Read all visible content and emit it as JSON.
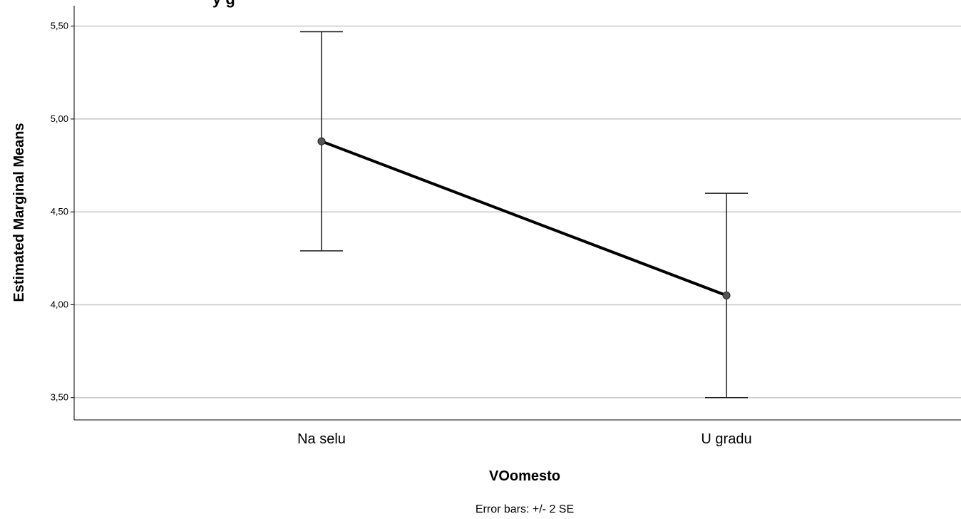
{
  "chart_data": {
    "type": "line",
    "title_partial": "y  g",
    "xlabel": "VOomesto",
    "ylabel": "Estimated Marginal Means",
    "categories": [
      "Na selu",
      "U gradu"
    ],
    "series": [
      {
        "values": [
          4.88,
          4.05
        ],
        "error_low": [
          4.29,
          3.5
        ],
        "error_high": [
          5.47,
          4.6
        ]
      }
    ],
    "ylim": [
      3.38,
      5.61
    ],
    "yticks": [
      3.5,
      4.0,
      4.5,
      5.0,
      5.5
    ],
    "ytick_labels": [
      "3,50",
      "4,00",
      "4,50",
      "5,00",
      "5,50"
    ],
    "grid": true,
    "footnote": "Error bars: +/- 2 SE",
    "colors": {
      "line": "#000000",
      "grid": "#c8c8c8",
      "marker": "#555555",
      "errorbar": "#1a1a1a"
    }
  }
}
